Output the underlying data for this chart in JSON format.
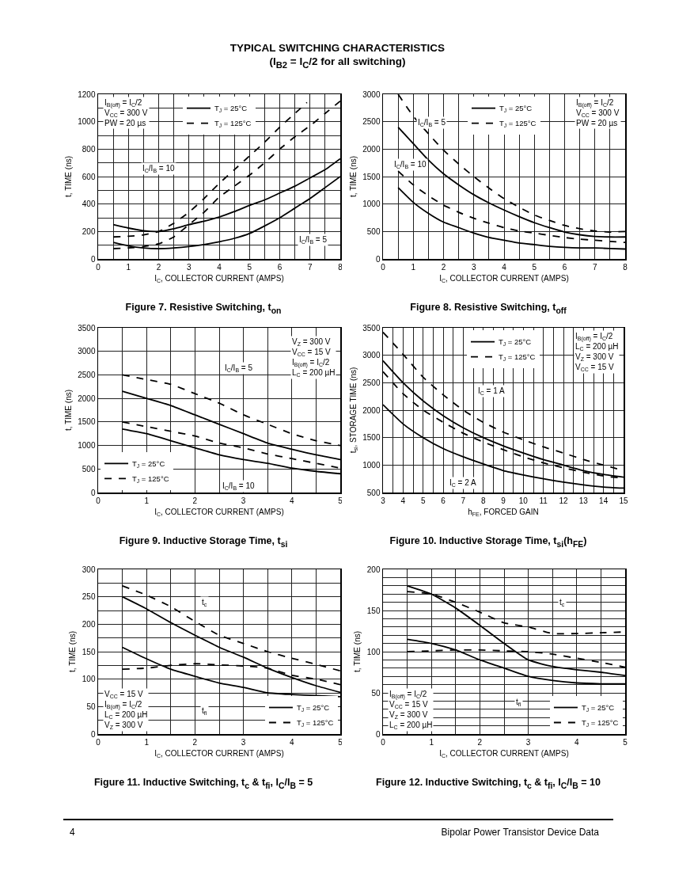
{
  "chart_data": [
    {
      "type": "other",
      "title": "TYPICAL SWITCHING CHARACTERISTICS",
      "subtitle": "(I$_{B2}$ = I$_{C}$/2 for all switching)"
    },
    {
      "type": "line",
      "title": "Figure 7. Resistive Switching, t$_{on}$",
      "xlabel": "I$_{C}$, COLLECTOR CURRENT (AMPS)",
      "ylabel": "t, TIME (ns)",
      "grid": true,
      "legend": "top",
      "x": [
        0.5,
        1,
        1.5,
        2,
        2.5,
        3,
        3.5,
        4,
        4.5,
        5,
        5.5,
        6,
        6.5,
        7,
        7.5,
        8
      ],
      "xlim": [
        0,
        8
      ],
      "xticks": [
        0,
        {
          "value": 0.5,
          "label": null
        },
        1,
        {
          "value": 1.5,
          "label": null
        },
        2,
        {
          "value": 2.5,
          "label": null
        },
        3,
        {
          "value": 3.5,
          "label": null
        },
        4,
        {
          "value": 4.5,
          "label": null
        },
        5,
        {
          "value": 5.5,
          "label": null
        },
        6,
        {
          "value": 6.5,
          "label": null
        },
        7,
        {
          "value": 7.5,
          "label": null
        },
        8
      ],
      "ylim": [
        0,
        1200
      ],
      "yticks": [
        0,
        {
          "value": 100,
          "label": null
        },
        200,
        {
          "value": 300,
          "label": null
        },
        400,
        {
          "value": 500,
          "label": null
        },
        600,
        {
          "value": 700,
          "label": null
        },
        800,
        {
          "value": 900,
          "label": null
        },
        1000,
        {
          "value": 1100,
          "label": null
        },
        1200
      ],
      "series": [
        {
          "name": "T$_{J}$ = 25°C",
          "color": "#000000",
          "line_style": "solid",
          "values": [
            250,
            225,
            205,
            200,
            220,
            250,
            275,
            305,
            345,
            390,
            430,
            480,
            530,
            590,
            650,
            730
          ]
        },
        {
          "name": "T$_{J}$ = 125°C",
          "color": "#000000",
          "line_style": "dashed",
          "x": [
            0.5,
            1,
            1.5,
            2,
            2.5,
            3,
            3.5,
            4,
            4.5,
            5,
            5.5,
            6,
            6.5,
            6.9
          ],
          "values": [
            160,
            165,
            175,
            200,
            260,
            340,
            440,
            550,
            650,
            750,
            850,
            960,
            1060,
            1140
          ]
        },
        {
          "color": "#000000",
          "line_style": "solid",
          "values": [
            120,
            95,
            80,
            75,
            80,
            90,
            105,
            125,
            150,
            185,
            240,
            300,
            370,
            440,
            520,
            600
          ]
        },
        {
          "color": "#000000",
          "line_style": "dashed",
          "values": [
            75,
            80,
            90,
            110,
            160,
            250,
            340,
            450,
            530,
            610,
            700,
            800,
            890,
            970,
            1060,
            1150
          ]
        }
      ],
      "annotations": [
        "I$_{B(off)}$ = I$_{C}$/2\nV$_{CC}$ = 300 V\nPW = 20 µs",
        {
          "text": "I$_{C}$/I$_{B}$ = 10",
          "x": 2,
          "y": 660
        },
        {
          "text": "I$_{C}$/I$_{B}$ = 5",
          "x": 7.1,
          "y": 140
        }
      ]
    },
    {
      "type": "line",
      "title": "Figure 8. Resistive Switching, t$_{off}$",
      "xlabel": "I$_{C}$, COLLECTOR CURRENT (AMPS)",
      "ylabel": "t, TIME (ns)",
      "grid": true,
      "legend": "top",
      "x": [
        0.5,
        1,
        1.5,
        2,
        2.5,
        3,
        3.5,
        4,
        4.5,
        5,
        5.5,
        6,
        6.5,
        7,
        7.5,
        8
      ],
      "xlim": [
        0,
        8
      ],
      "xticks": [
        0,
        {
          "value": 0.5,
          "label": null
        },
        1,
        {
          "value": 1.5,
          "label": null
        },
        2,
        {
          "value": 2.5,
          "label": null
        },
        3,
        {
          "value": 3.5,
          "label": null
        },
        4,
        {
          "value": 4.5,
          "label": null
        },
        5,
        {
          "value": 5.5,
          "label": null
        },
        6,
        {
          "value": 6.5,
          "label": null
        },
        7,
        {
          "value": 7.5,
          "label": null
        },
        8
      ],
      "ylim": [
        0,
        3000
      ],
      "yticks": [
        0,
        500,
        1000,
        1500,
        2000,
        2500,
        3000
      ],
      "series": [
        {
          "name": "T$_{J}$ = 25°C",
          "color": "#000000",
          "line_style": "solid",
          "values": [
            2400,
            2100,
            1800,
            1550,
            1350,
            1170,
            1020,
            890,
            770,
            660,
            570,
            490,
            440,
            410,
            400,
            400
          ]
        },
        {
          "name": "T$_{J}$ = 125°C",
          "color": "#000000",
          "line_style": "dashed",
          "values": [
            3000,
            2600,
            2280,
            1980,
            1730,
            1500,
            1290,
            1100,
            940,
            800,
            700,
            610,
            550,
            510,
            490,
            500
          ]
        },
        {
          "color": "#000000",
          "line_style": "solid",
          "values": [
            1300,
            1030,
            830,
            670,
            570,
            470,
            390,
            340,
            290,
            260,
            230,
            210,
            200,
            200,
            190,
            180
          ]
        },
        {
          "color": "#000000",
          "line_style": "dashed",
          "values": [
            1600,
            1350,
            1150,
            980,
            850,
            740,
            650,
            570,
            510,
            470,
            430,
            390,
            360,
            340,
            320,
            300
          ]
        }
      ],
      "annotations": [
        "I$_{B(off)}$ = I$_{C}$/2\nV$_{CC}$ = 300 V\nPW = 20 µs",
        {
          "text": "I$_{C}$/I$_{B}$ = 5",
          "x": 1.6,
          "y": 2480
        },
        {
          "text": "I$_{C}$/I$_{B}$ = 10",
          "x": 0.9,
          "y": 1720
        }
      ]
    },
    {
      "type": "line",
      "title": "Figure 9. Inductive Storage Time, t$_{si}$",
      "xlabel": "I$_{C}$, COLLECTOR CURRENT (AMPS)",
      "ylabel": "t, TIME (ns)",
      "grid": true,
      "legend": "bottom left",
      "x": [
        0.5,
        1,
        1.5,
        2,
        2.5,
        3,
        3.5,
        4,
        4.5,
        5
      ],
      "xlim": [
        0,
        5
      ],
      "xticks": [
        0,
        {
          "value": 0.5,
          "label": null
        },
        1,
        {
          "value": 1.5,
          "label": null
        },
        2,
        {
          "value": 2.5,
          "label": null
        },
        3,
        {
          "value": 3.5,
          "label": null
        },
        4,
        {
          "value": 4.5,
          "label": null
        },
        5
      ],
      "ylim": [
        0,
        3500
      ],
      "yticks": [
        0,
        500,
        1000,
        1500,
        2000,
        2500,
        3000,
        3500
      ],
      "series": [
        {
          "name": "T$_{J}$ = 25°C",
          "color": "#000000",
          "line_style": "solid",
          "values": [
            2150,
            2000,
            1850,
            1650,
            1450,
            1250,
            1050,
            920,
            800,
            700
          ]
        },
        {
          "name": "T$_{J}$ = 125°C",
          "color": "#000000",
          "line_style": "dashed",
          "values": [
            2500,
            2400,
            2300,
            2100,
            1900,
            1650,
            1450,
            1250,
            1100,
            1000
          ]
        },
        {
          "color": "#000000",
          "line_style": "solid",
          "values": [
            1350,
            1250,
            1100,
            950,
            800,
            700,
            620,
            520,
            450,
            400
          ]
        },
        {
          "color": "#000000",
          "line_style": "dashed",
          "values": [
            1500,
            1400,
            1300,
            1200,
            1050,
            950,
            820,
            720,
            620,
            520
          ]
        }
      ],
      "annotations": [
        "V$_{Z}$ = 300 V\nV$_{CC}$ = 15 V\nI$_{B(off)}$ = I$_{C}$/2\nL$_{C}$ = 200 µH",
        {
          "text": "I$_{C}$/I$_{B}$ = 5",
          "x": 2.9,
          "y": 2650
        },
        {
          "text": "I$_{C}$/I$_{B}$ = 10",
          "x": 2.9,
          "y": 130
        }
      ]
    },
    {
      "type": "line",
      "title": "Figure 10. Inductive Storage Time, t$_{si}$(h$_{FE}$)",
      "xlabel": "h$_{FE}$, FORCED GAIN",
      "ylabel": "t$_{si}$, STORAGE TIME (ns)",
      "grid": true,
      "legend": "top",
      "x": [
        3,
        4,
        5,
        6,
        7,
        8,
        9,
        10,
        11,
        12,
        13,
        14,
        15
      ],
      "xlim": [
        3,
        15
      ],
      "xticks": [
        3,
        {
          "value": 3.5,
          "label": null
        },
        4,
        {
          "value": 4.5,
          "label": null
        },
        5,
        {
          "value": 5.5,
          "label": null
        },
        6,
        {
          "value": 6.5,
          "label": null
        },
        7,
        {
          "value": 7.5,
          "label": null
        },
        8,
        {
          "value": 8.5,
          "label": null
        },
        9,
        {
          "value": 9.5,
          "label": null
        },
        10,
        {
          "value": 10.5,
          "label": null
        },
        11,
        {
          "value": 11.5,
          "label": null
        },
        12,
        {
          "value": 12.5,
          "label": null
        },
        13,
        {
          "value": 13.5,
          "label": null
        },
        14,
        {
          "value": 14.5,
          "label": null
        },
        15
      ],
      "ylim": [
        500,
        3500
      ],
      "yticks": [
        500,
        1000,
        1500,
        2000,
        2500,
        3000,
        3500
      ],
      "series": [
        {
          "name": "T$_{J}$ = 25°C",
          "color": "#000000",
          "line_style": "solid",
          "values": [
            2900,
            2500,
            2170,
            1900,
            1680,
            1500,
            1350,
            1220,
            1100,
            1000,
            900,
            830,
            780
          ]
        },
        {
          "name": "T$_{J}$ = 125°C",
          "color": "#000000",
          "line_style": "dashed",
          "values": [
            3420,
            3020,
            2600,
            2280,
            2000,
            1780,
            1600,
            1460,
            1330,
            1220,
            1100,
            1000,
            900
          ]
        },
        {
          "color": "#000000",
          "line_style": "solid",
          "values": [
            2100,
            1750,
            1500,
            1300,
            1150,
            1020,
            900,
            820,
            750,
            690,
            640,
            600,
            580
          ]
        },
        {
          "color": "#000000",
          "line_style": "dashed",
          "values": [
            2700,
            2300,
            2000,
            1780,
            1580,
            1420,
            1280,
            1150,
            1040,
            950,
            870,
            800,
            760
          ]
        }
      ],
      "annotations": [
        "I$_{B(off)}$ = I$_{C}$/2\nL$_{C}$ = 200 µH\nV$_{Z}$ = 300 V\nV$_{CC}$ = 15 V",
        {
          "text": "I$_{C}$ = 1 A",
          "x": 8.4,
          "y": 2340
        },
        {
          "text": "I$_{C}$ = 2 A",
          "x": 7,
          "y": 680
        }
      ]
    },
    {
      "type": "line",
      "title": "Figure 11. Inductive Switching, t$_{c}$ & t$_{fi}$, I$_{C}$/I$_{B}$ = 5",
      "xlabel": "I$_{C}$, COLLECTOR CURRENT (AMPS)",
      "ylabel": "t, TIME (ns)",
      "grid": true,
      "legend": "bottom right",
      "x": [
        0.5,
        1,
        1.5,
        2,
        2.5,
        3,
        3.5,
        4,
        4.5,
        5
      ],
      "xlim": [
        0,
        5
      ],
      "xticks": [
        0,
        {
          "value": 0.5,
          "label": null
        },
        1,
        {
          "value": 1.5,
          "label": null
        },
        2,
        {
          "value": 2.5,
          "label": null
        },
        3,
        {
          "value": 3.5,
          "label": null
        },
        4,
        {
          "value": 4.5,
          "label": null
        },
        5
      ],
      "ylim": [
        0,
        300
      ],
      "yticks": [
        0,
        {
          "value": 25,
          "label": null
        },
        50,
        {
          "value": 75,
          "label": null
        },
        100,
        {
          "value": 125,
          "label": null
        },
        150,
        {
          "value": 175,
          "label": null
        },
        200,
        {
          "value": 225,
          "label": null
        },
        250,
        {
          "value": 275,
          "label": null
        },
        300
      ],
      "series": [
        {
          "name": "T$_{J}$ = 25°C",
          "color": "#000000",
          "line_style": "solid",
          "values": [
            250,
            228,
            203,
            180,
            158,
            140,
            120,
            103,
            88,
            76
          ]
        },
        {
          "name": "T$_{J}$ = 125°C",
          "color": "#000000",
          "line_style": "dashed",
          "values": [
            270,
            253,
            232,
            205,
            180,
            165,
            150,
            138,
            127,
            115
          ]
        },
        {
          "color": "#000000",
          "line_style": "solid",
          "values": [
            158,
            137,
            118,
            105,
            93,
            85,
            75,
            72,
            70,
            68
          ]
        },
        {
          "color": "#000000",
          "line_style": "dashed",
          "values": [
            118,
            120,
            125,
            128,
            126,
            124,
            120,
            107,
            100,
            90
          ]
        }
      ],
      "annotations": [
        "V$_{CC}$ = 15 V\nI$_{B(off)}$ = I$_{C}$/2\nL$_{C}$ = 200 µH\nV$_{Z}$ = 300 V",
        {
          "text": "t$_{c}$",
          "x": 2.2,
          "y": 240
        },
        {
          "text": "t$_{fi}$",
          "x": 2.2,
          "y": 42
        }
      ]
    },
    {
      "type": "line",
      "title": "Figure 12. Inductive Switching, t$_{c}$ & t$_{fi}$, I$_{C}$/I$_{B}$ = 10",
      "xlabel": "I$_{C}$, COLLECTOR CURRENT (AMPS)",
      "ylabel": "t, TIME (ns)",
      "grid": true,
      "legend": "bottom right",
      "x": [
        0.5,
        1,
        1.5,
        2,
        2.5,
        3,
        3.5,
        4,
        4.5,
        5
      ],
      "xlim": [
        0,
        5
      ],
      "xticks": [
        0,
        {
          "value": 0.5,
          "label": null
        },
        1,
        {
          "value": 1.5,
          "label": null
        },
        2,
        {
          "value": 2.5,
          "label": null
        },
        3,
        {
          "value": 3.5,
          "label": null
        },
        4,
        {
          "value": 4.5,
          "label": null
        },
        5
      ],
      "ylim": [
        0,
        200
      ],
      "yticks": [
        0,
        {
          "value": 10,
          "label": null
        },
        {
          "value": 20,
          "label": null
        },
        {
          "value": 30,
          "label": null
        },
        {
          "value": 40,
          "label": null
        },
        50,
        {
          "value": 60,
          "label": null
        },
        {
          "value": 70,
          "label": null
        },
        {
          "value": 80,
          "label": null
        },
        {
          "value": 90,
          "label": null
        },
        100,
        {
          "value": 110,
          "label": null
        },
        {
          "value": 120,
          "label": null
        },
        {
          "value": 130,
          "label": null
        },
        {
          "value": 140,
          "label": null
        },
        150,
        {
          "value": 160,
          "label": null
        },
        {
          "value": 170,
          "label": null
        },
        {
          "value": 180,
          "label": null
        },
        {
          "value": 190,
          "label": null
        },
        200
      ],
      "series": [
        {
          "name": "T$_{J}$ = 25°C",
          "color": "#000000",
          "line_style": "solid",
          "values": [
            180,
            170,
            153,
            132,
            110,
            90,
            82,
            78,
            75,
            71
          ]
        },
        {
          "name": "T$_{J}$ = 125°C",
          "color": "#000000",
          "line_style": "dashed",
          "values": [
            173,
            170,
            160,
            148,
            135,
            130,
            122,
            122,
            123,
            124
          ]
        },
        {
          "color": "#000000",
          "line_style": "solid",
          "values": [
            115,
            110,
            102,
            90,
            80,
            70,
            65,
            62,
            61,
            61
          ]
        },
        {
          "color": "#000000",
          "line_style": "dashed",
          "values": [
            100,
            101,
            102,
            102,
            101,
            100,
            97,
            92,
            87,
            81
          ]
        }
      ],
      "annotations": [
        "I$_{B(off)}$ = I$_{C}$/2\nV$_{CC}$ = 15 V\nV$_{Z}$ = 300 V\nL$_{C}$ = 200 µH",
        {
          "text": "t$_{c}$",
          "x": 3.7,
          "y": 160
        },
        {
          "text": "t$_{fi}$",
          "x": 2.8,
          "y": 38
        }
      ]
    },
    {
      "type": "other",
      "annotations": [
        "4",
        "Bipolar Power Transistor Device Data"
      ]
    }
  ]
}
